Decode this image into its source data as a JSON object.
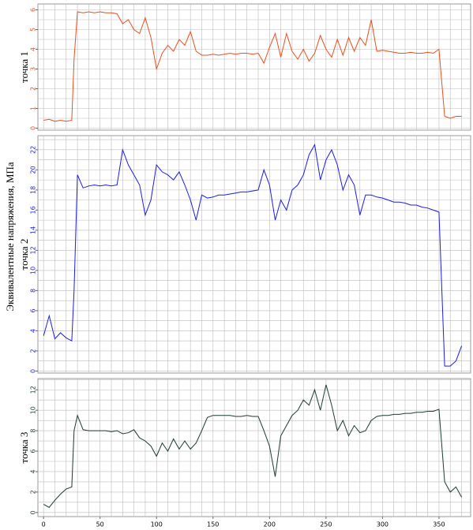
{
  "supylabel": "Эквивалентные напряжения, МПа",
  "chart_data": [
    {
      "type": "line",
      "ylabel": "точка 1",
      "grid": true,
      "tick_color": "#e0501e",
      "xlim": [
        -5,
        378
      ],
      "ylim": [
        -0.1,
        6.3
      ],
      "yticks": [
        0,
        1,
        2,
        3,
        4,
        5,
        6
      ],
      "ygrid": [
        0,
        0.5,
        1,
        1.5,
        2,
        2.5,
        3,
        3.5,
        4,
        4.5,
        5,
        5.5,
        6
      ],
      "xgrid": [
        0,
        10,
        20,
        30,
        40,
        50,
        60,
        70,
        80,
        90,
        100,
        110,
        120,
        130,
        140,
        150,
        160,
        170,
        180,
        190,
        200,
        210,
        220,
        230,
        240,
        250,
        260,
        270,
        280,
        290,
        300,
        310,
        320,
        330,
        340,
        350,
        360,
        370
      ],
      "x": [
        0,
        5,
        10,
        15,
        20,
        25,
        27,
        30,
        35,
        40,
        45,
        50,
        55,
        60,
        65,
        70,
        75,
        80,
        85,
        90,
        95,
        100,
        105,
        110,
        115,
        120,
        125,
        130,
        135,
        140,
        145,
        150,
        155,
        160,
        165,
        170,
        175,
        180,
        185,
        190,
        195,
        200,
        205,
        210,
        215,
        220,
        225,
        230,
        235,
        240,
        245,
        250,
        255,
        260,
        265,
        270,
        275,
        280,
        285,
        290,
        295,
        300,
        305,
        310,
        315,
        320,
        325,
        330,
        335,
        340,
        345,
        350,
        355,
        360,
        365,
        370
      ],
      "series": [
        {
          "color": "#ec4f1a",
          "values": [
            0.4,
            0.45,
            0.35,
            0.4,
            0.35,
            0.4,
            3.5,
            5.9,
            5.85,
            5.9,
            5.85,
            5.9,
            5.85,
            5.85,
            5.8,
            5.3,
            5.5,
            5.0,
            4.8,
            5.6,
            4.6,
            3.0,
            3.8,
            4.2,
            3.9,
            4.5,
            4.2,
            4.9,
            3.9,
            3.7,
            3.7,
            3.75,
            3.7,
            3.75,
            3.8,
            3.75,
            3.8,
            3.8,
            3.75,
            3.8,
            3.3,
            4.1,
            4.8,
            3.6,
            4.8,
            3.9,
            3.5,
            4.0,
            3.4,
            3.8,
            4.7,
            4.0,
            3.6,
            4.5,
            3.7,
            4.6,
            3.9,
            4.6,
            4.2,
            5.5,
            3.9,
            3.95,
            3.9,
            3.85,
            3.8,
            3.8,
            3.85,
            3.8,
            3.8,
            3.85,
            3.8,
            4.0,
            0.6,
            0.5,
            0.6,
            0.6
          ]
        }
      ]
    },
    {
      "type": "line",
      "ylabel": "точка 2",
      "grid": true,
      "tick_color": "#1a1ae0",
      "xlim": [
        -5,
        378
      ],
      "ylim": [
        -0.2,
        23.4
      ],
      "yticks": [
        0,
        2,
        4,
        6,
        8,
        10,
        12,
        14,
        16,
        18,
        20,
        22
      ],
      "ygrid": [
        0,
        1,
        2,
        3,
        4,
        5,
        6,
        7,
        8,
        9,
        10,
        11,
        12,
        13,
        14,
        15,
        16,
        17,
        18,
        19,
        20,
        21,
        22,
        23
      ],
      "xgrid": [
        0,
        10,
        20,
        30,
        40,
        50,
        60,
        70,
        80,
        90,
        100,
        110,
        120,
        130,
        140,
        150,
        160,
        170,
        180,
        190,
        200,
        210,
        220,
        230,
        240,
        250,
        260,
        270,
        280,
        290,
        300,
        310,
        320,
        330,
        340,
        350,
        360,
        370
      ],
      "x": [
        0,
        5,
        10,
        15,
        20,
        25,
        27,
        30,
        35,
        40,
        45,
        50,
        55,
        60,
        65,
        70,
        75,
        80,
        85,
        90,
        95,
        100,
        105,
        110,
        115,
        120,
        125,
        130,
        135,
        140,
        145,
        150,
        155,
        160,
        165,
        170,
        175,
        180,
        185,
        190,
        195,
        200,
        205,
        210,
        215,
        220,
        225,
        230,
        235,
        240,
        245,
        250,
        255,
        260,
        265,
        270,
        275,
        280,
        285,
        290,
        295,
        300,
        305,
        310,
        315,
        320,
        325,
        330,
        335,
        340,
        345,
        350,
        355,
        360,
        365,
        370
      ],
      "series": [
        {
          "color": "#1c1ce6",
          "values": [
            3.5,
            5.5,
            3.2,
            3.8,
            3.3,
            3.0,
            8.0,
            19.5,
            18.2,
            18.4,
            18.5,
            18.4,
            18.5,
            18.4,
            18.5,
            22.0,
            20.5,
            19.5,
            18.5,
            15.5,
            17.0,
            20.5,
            19.8,
            19.5,
            19.0,
            19.8,
            18.5,
            17.0,
            15.0,
            17.5,
            17.2,
            17.3,
            17.5,
            17.5,
            17.6,
            17.7,
            17.8,
            17.8,
            17.9,
            18.0,
            20.0,
            18.5,
            15.0,
            17.0,
            16.0,
            18.0,
            18.5,
            19.5,
            21.5,
            22.5,
            19.0,
            21.0,
            22.0,
            20.5,
            18.0,
            19.5,
            18.5,
            15.5,
            17.5,
            17.5,
            17.3,
            17.2,
            17.0,
            16.8,
            16.8,
            16.7,
            16.5,
            16.5,
            16.3,
            16.2,
            16.0,
            15.8,
            0.5,
            0.5,
            1.0,
            2.5
          ]
        }
      ]
    },
    {
      "type": "line",
      "ylabel": "точка 3",
      "grid": true,
      "tick_color": "#1c3b34",
      "xlim": [
        -5,
        378
      ],
      "ylim": [
        -0.4,
        13.1
      ],
      "yticks": [
        0,
        2,
        4,
        6,
        8,
        10,
        12
      ],
      "xticks": [
        0,
        50,
        100,
        150,
        200,
        250,
        300,
        350
      ],
      "ygrid": [
        0,
        1,
        2,
        3,
        4,
        5,
        6,
        7,
        8,
        9,
        10,
        11,
        12,
        13
      ],
      "xgrid": [
        0,
        10,
        20,
        30,
        40,
        50,
        60,
        70,
        80,
        90,
        100,
        110,
        120,
        130,
        140,
        150,
        160,
        170,
        180,
        190,
        200,
        210,
        220,
        230,
        240,
        250,
        260,
        270,
        280,
        290,
        300,
        310,
        320,
        330,
        340,
        350,
        360,
        370
      ],
      "x": [
        0,
        5,
        10,
        15,
        20,
        25,
        27,
        30,
        35,
        40,
        45,
        50,
        55,
        60,
        65,
        70,
        75,
        80,
        85,
        90,
        95,
        100,
        105,
        110,
        115,
        120,
        125,
        130,
        135,
        140,
        145,
        150,
        155,
        160,
        165,
        170,
        175,
        180,
        185,
        190,
        195,
        200,
        205,
        210,
        215,
        220,
        225,
        230,
        235,
        240,
        245,
        250,
        255,
        260,
        265,
        270,
        275,
        280,
        285,
        290,
        295,
        300,
        305,
        310,
        315,
        320,
        325,
        330,
        335,
        340,
        345,
        350,
        355,
        360,
        365,
        370
      ],
      "series": [
        {
          "color": "#1c3b34",
          "values": [
            0.8,
            0.5,
            1.2,
            1.8,
            2.3,
            2.5,
            8,
            9.5,
            8.1,
            8.0,
            8.0,
            8.0,
            8.0,
            7.9,
            8.0,
            7.7,
            7.8,
            8.1,
            7.3,
            7.0,
            6.5,
            5.5,
            6.8,
            6.0,
            7.2,
            6.2,
            7.0,
            6.2,
            6.8,
            8.0,
            9.3,
            9.5,
            9.5,
            9.5,
            9.5,
            9.4,
            9.4,
            9.5,
            9.4,
            9.4,
            8.0,
            6.5,
            3.5,
            7.5,
            8.5,
            9.5,
            10.0,
            11.0,
            10.5,
            12.0,
            10.0,
            12.5,
            10.5,
            8.0,
            9.0,
            7.5,
            8.5,
            7.8,
            8.0,
            9.0,
            9.4,
            9.5,
            9.5,
            9.6,
            9.6,
            9.7,
            9.7,
            9.8,
            9.8,
            9.9,
            9.9,
            10.1,
            3.0,
            2.0,
            2.5,
            1.5
          ]
        }
      ]
    }
  ]
}
